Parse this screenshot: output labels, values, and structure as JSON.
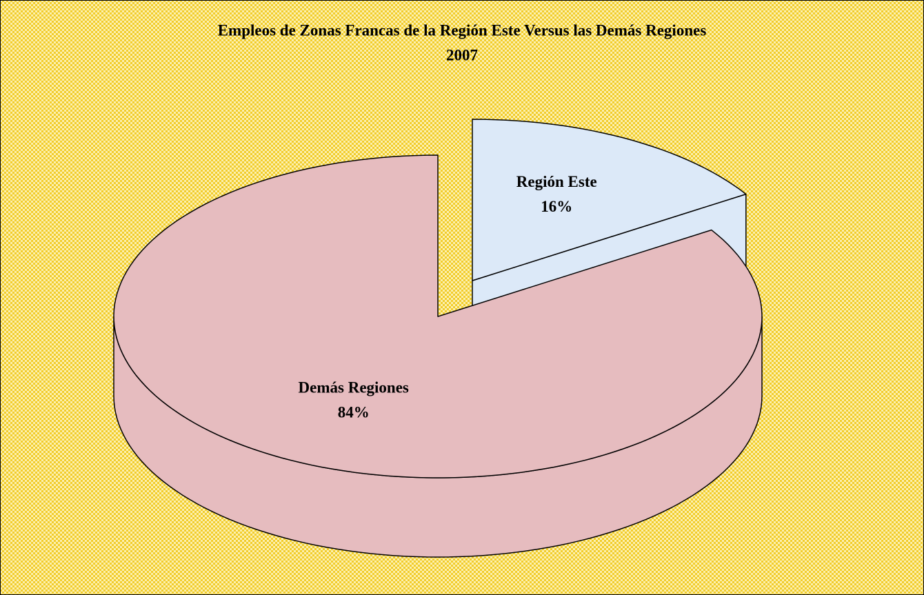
{
  "chart_data": {
    "type": "pie",
    "title": "Empleos de Zonas Francas de la Región Este Versus las Demás Regiones",
    "subtitle": "2007",
    "categories": [
      "Región Este",
      "Demás Regiones"
    ],
    "values": [
      16,
      84
    ],
    "value_labels": [
      "16%",
      "84%"
    ],
    "colors": [
      "#dce9f8",
      "#e6bcbf"
    ]
  }
}
